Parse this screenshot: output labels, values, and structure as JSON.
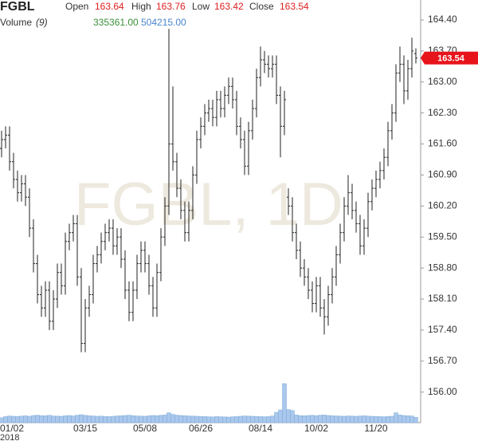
{
  "chart_data": {
    "type": "ohlc",
    "symbol": "FGBL",
    "watermark": "FGBL, 1D",
    "header": {
      "open_label": "Open",
      "open": 163.64,
      "high_label": "High",
      "high": 163.76,
      "low_label": "Low",
      "low": 163.42,
      "close_label": "Close",
      "close": 163.54,
      "volume_label": "Volume",
      "volume_period": "(9)",
      "volume_value": "335361.00",
      "volume_ma": "504215.00"
    },
    "year_label": "2018",
    "categories": [
      "01/02",
      null,
      null,
      null,
      null,
      null,
      null,
      null,
      null,
      null,
      null,
      null,
      null,
      null,
      null,
      null,
      null,
      null,
      null,
      null,
      null,
      "03/15",
      null,
      null,
      null,
      null,
      null,
      null,
      null,
      null,
      null,
      null,
      null,
      null,
      null,
      null,
      "05/08",
      null,
      null,
      null,
      null,
      null,
      null,
      null,
      null,
      null,
      null,
      null,
      null,
      null,
      "06/26",
      null,
      null,
      null,
      null,
      null,
      null,
      null,
      null,
      null,
      null,
      null,
      null,
      null,
      null,
      "08/14",
      null,
      null,
      null,
      null,
      null,
      null,
      null,
      null,
      null,
      null,
      null,
      null,
      null,
      "10/02",
      null,
      null,
      null,
      null,
      null,
      null,
      null,
      null,
      null,
      null,
      null,
      null,
      null,
      null,
      "11/20",
      null,
      null,
      null,
      null,
      null,
      null,
      null,
      null,
      null,
      null
    ],
    "open": [
      161.5,
      161.7,
      161.8,
      161.2,
      160.8,
      160.5,
      160.7,
      160.4,
      159.7,
      158.9,
      158.2,
      157.9,
      158.3,
      157.6,
      158.1,
      158.7,
      158.4,
      159.4,
      159.6,
      159.8,
      158.6,
      157.1,
      157.9,
      158.2,
      158.9,
      159.1,
      159.4,
      159.6,
      159.7,
      159.3,
      159.5,
      159.0,
      158.3,
      157.8,
      158.3,
      158.9,
      159.2,
      158.9,
      158.4,
      157.9,
      158.7,
      159.5,
      160.2,
      161.6,
      161.2,
      160.6,
      160.1,
      159.6,
      160.1,
      160.9,
      161.7,
      162.0,
      162.3,
      162.4,
      162.2,
      162.6,
      162.4,
      162.7,
      162.9,
      162.6,
      162.0,
      161.7,
      161.1,
      161.9,
      162.4,
      163.1,
      163.5,
      163.4,
      163.3,
      163.4,
      162.7,
      162.0,
      160.4,
      160.2,
      159.6,
      159.2,
      158.8,
      158.6,
      158.3,
      158.0,
      158.4,
      157.9,
      157.7,
      158.2,
      158.6,
      159.1,
      159.6,
      160.2,
      160.5,
      160.1,
      159.8,
      159.3,
      159.7,
      160.3,
      160.6,
      160.8,
      161.0,
      161.3,
      161.9,
      162.3,
      163.2,
      163.4,
      162.8,
      163.3,
      163.64
    ],
    "high": [
      161.9,
      162.0,
      162.0,
      161.4,
      161.0,
      160.9,
      160.9,
      160.6,
      159.9,
      159.1,
      158.4,
      158.5,
      158.5,
      158.3,
      158.9,
      158.9,
      159.6,
      159.8,
      160.0,
      160.0,
      158.8,
      158.1,
      158.4,
      159.1,
      159.3,
      159.6,
      159.8,
      159.9,
      159.9,
      159.7,
      159.7,
      159.2,
      158.5,
      158.5,
      159.1,
      159.4,
      159.4,
      159.1,
      158.6,
      158.9,
      159.7,
      160.4,
      164.2,
      162.9,
      161.4,
      160.8,
      160.3,
      160.3,
      161.1,
      161.9,
      162.2,
      162.5,
      162.6,
      162.6,
      162.8,
      162.8,
      162.9,
      163.1,
      163.1,
      162.8,
      162.2,
      161.9,
      162.1,
      162.6,
      163.3,
      163.8,
      163.7,
      163.6,
      163.6,
      163.6,
      162.9,
      162.8,
      160.6,
      160.4,
      159.8,
      159.4,
      159.0,
      158.8,
      158.5,
      158.6,
      158.6,
      158.1,
      158.4,
      158.8,
      159.3,
      159.8,
      160.4,
      160.9,
      160.7,
      160.3,
      160.0,
      159.9,
      160.5,
      160.8,
      161.0,
      161.2,
      161.5,
      162.1,
      162.5,
      163.4,
      163.8,
      163.6,
      163.5,
      164.0,
      163.76
    ],
    "low": [
      161.3,
      161.5,
      161.0,
      160.6,
      160.3,
      160.3,
      160.2,
      159.5,
      158.7,
      158.0,
      157.7,
      157.7,
      157.4,
      157.4,
      157.9,
      158.2,
      158.2,
      159.2,
      159.4,
      158.4,
      156.9,
      156.9,
      157.7,
      158.0,
      158.7,
      158.9,
      159.2,
      159.4,
      159.1,
      159.1,
      158.8,
      158.1,
      157.6,
      157.6,
      158.1,
      158.7,
      158.7,
      158.2,
      157.7,
      157.7,
      158.5,
      159.3,
      160.0,
      161.0,
      160.4,
      159.9,
      159.4,
      159.4,
      159.9,
      160.7,
      161.5,
      161.8,
      162.1,
      162.0,
      162.0,
      162.2,
      162.2,
      162.5,
      162.4,
      161.8,
      161.5,
      160.9,
      160.9,
      161.7,
      162.2,
      162.9,
      163.2,
      163.1,
      163.1,
      162.5,
      161.3,
      161.8,
      160.0,
      159.4,
      159.0,
      158.6,
      158.4,
      158.1,
      157.8,
      157.8,
      157.7,
      157.3,
      157.5,
      158.0,
      158.4,
      158.9,
      159.4,
      160.0,
      159.9,
      159.6,
      159.1,
      159.1,
      159.5,
      160.1,
      160.4,
      160.6,
      160.8,
      161.1,
      161.7,
      162.1,
      163.0,
      162.5,
      162.6,
      163.1,
      163.42
    ],
    "close": [
      161.7,
      161.8,
      161.2,
      160.8,
      160.5,
      160.7,
      160.4,
      159.7,
      158.9,
      158.2,
      157.9,
      158.3,
      157.6,
      158.1,
      158.7,
      158.4,
      159.4,
      159.6,
      159.8,
      158.6,
      157.1,
      157.9,
      158.2,
      158.9,
      159.1,
      159.4,
      159.6,
      159.7,
      159.3,
      159.5,
      159.0,
      158.3,
      157.8,
      158.3,
      158.9,
      159.2,
      158.9,
      158.4,
      157.9,
      158.7,
      159.5,
      160.2,
      161.6,
      161.2,
      160.6,
      160.1,
      159.6,
      160.1,
      160.9,
      161.7,
      162.0,
      162.3,
      162.4,
      162.2,
      162.6,
      162.4,
      162.7,
      162.9,
      162.6,
      162.0,
      161.7,
      161.1,
      161.9,
      162.4,
      163.1,
      163.5,
      163.4,
      163.3,
      163.4,
      162.7,
      162.0,
      162.6,
      160.2,
      159.6,
      159.2,
      158.8,
      158.6,
      158.3,
      158.0,
      158.4,
      157.9,
      157.7,
      158.2,
      158.6,
      159.1,
      159.6,
      160.2,
      160.5,
      160.1,
      159.8,
      159.3,
      159.7,
      160.3,
      160.6,
      160.8,
      161.0,
      161.3,
      161.9,
      162.3,
      163.2,
      163.4,
      162.8,
      163.3,
      163.7,
      163.54
    ],
    "volume": [
      310000,
      380000,
      420000,
      400000,
      390000,
      410000,
      430000,
      400000,
      450000,
      470000,
      440000,
      430000,
      460000,
      420000,
      410000,
      400000,
      430000,
      450000,
      420000,
      470000,
      500000,
      460000,
      430000,
      420000,
      400000,
      410000,
      390000,
      380000,
      400000,
      420000,
      430000,
      450000,
      470000,
      440000,
      420000,
      410000,
      400000,
      430000,
      450000,
      440000,
      460000,
      480000,
      620000,
      520000,
      470000,
      450000,
      440000,
      420000,
      410000,
      400000,
      390000,
      380000,
      370000,
      360000,
      380000,
      370000,
      360000,
      350000,
      370000,
      380000,
      400000,
      420000,
      410000,
      400000,
      390000,
      380000,
      370000,
      380000,
      420000,
      650000,
      800000,
      2450000,
      820000,
      760000,
      480000,
      440000,
      430000,
      450000,
      460000,
      440000,
      470000,
      480000,
      450000,
      430000,
      420000,
      410000,
      400000,
      420000,
      410000,
      400000,
      420000,
      430000,
      410000,
      400000,
      390000,
      380000,
      370000,
      390000,
      400000,
      620000,
      480000,
      450000,
      430000,
      420000,
      335361
    ],
    "color": "#222222",
    "volume_color": "#a9c8ec",
    "last_price": 163.54,
    "last_price_color": "#e8141b",
    "ylim": [
      155.31,
      164.85
    ],
    "yticks": [
      {
        "value": 164.4,
        "label": "164.40"
      },
      {
        "value": 163.7,
        "label": "163.70"
      },
      {
        "value": 163.0,
        "label": "163.00"
      },
      {
        "value": 162.3,
        "label": "162.30"
      },
      {
        "value": 161.6,
        "label": "161.60"
      },
      {
        "value": 160.9,
        "label": "160.90"
      },
      {
        "value": 160.2,
        "label": "160.20"
      },
      {
        "value": 159.5,
        "label": "159.50"
      },
      {
        "value": 158.8,
        "label": "158.80"
      },
      {
        "value": 158.1,
        "label": "158.10"
      },
      {
        "value": 157.4,
        "label": "157.40"
      },
      {
        "value": 156.7,
        "label": "156.70"
      },
      {
        "value": 156.0,
        "label": "156.00"
      }
    ],
    "y2lim": [
      0,
      2600000
    ]
  }
}
